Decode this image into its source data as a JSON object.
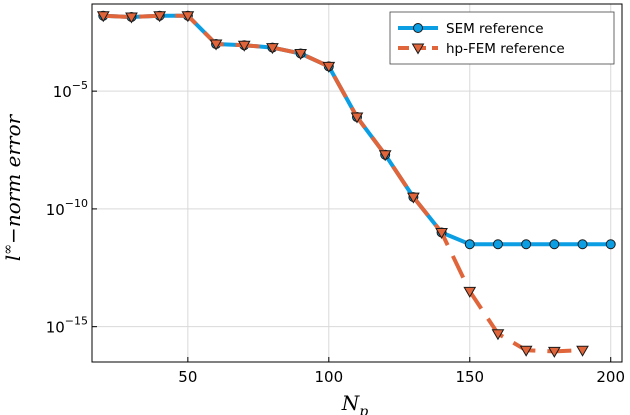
{
  "chart_data": {
    "type": "line",
    "xlabel": "N_p",
    "ylabel": "l^∞ −norm error",
    "y_scale": "log",
    "xlim": [
      16,
      204
    ],
    "ylim_exp": [
      -16.5,
      -1.3
    ],
    "grid": true,
    "legend_position": "top-right",
    "x_ticks": [
      50,
      100,
      150,
      200
    ],
    "y_ticks": [
      {
        "exp": -5,
        "base": "10",
        "sup": "−5"
      },
      {
        "exp": -10,
        "base": "10",
        "sup": "−10"
      },
      {
        "exp": -15,
        "base": "10",
        "sup": "−15"
      }
    ],
    "series": [
      {
        "name": "SEM reference",
        "color": "#0c9ee3",
        "marker": "circle",
        "line_style": "solid",
        "x": [
          20,
          30,
          40,
          50,
          60,
          70,
          80,
          90,
          100,
          110,
          120,
          130,
          140,
          150,
          160,
          170,
          180,
          190,
          200
        ],
        "y_exp": [
          -1.8,
          -1.85,
          -1.8,
          -1.8,
          -3.0,
          -3.05,
          -3.15,
          -3.4,
          -3.95,
          -6.1,
          -7.7,
          -9.5,
          -11.0,
          -11.5,
          -11.5,
          -11.5,
          -11.5,
          -11.5,
          -11.5
        ]
      },
      {
        "name": "hp-FEM reference",
        "color": "#e0653a",
        "marker": "triangle-down",
        "line_style": "dashed",
        "x": [
          20,
          30,
          40,
          50,
          60,
          70,
          80,
          90,
          100,
          110,
          120,
          130,
          140,
          150,
          160,
          170,
          180,
          190
        ],
        "y_exp": [
          -1.8,
          -1.85,
          -1.8,
          -1.8,
          -3.0,
          -3.05,
          -3.15,
          -3.4,
          -3.95,
          -6.1,
          -7.7,
          -9.5,
          -11.0,
          -13.5,
          -15.3,
          -16.0,
          -16.05,
          -16.0
        ]
      }
    ]
  }
}
